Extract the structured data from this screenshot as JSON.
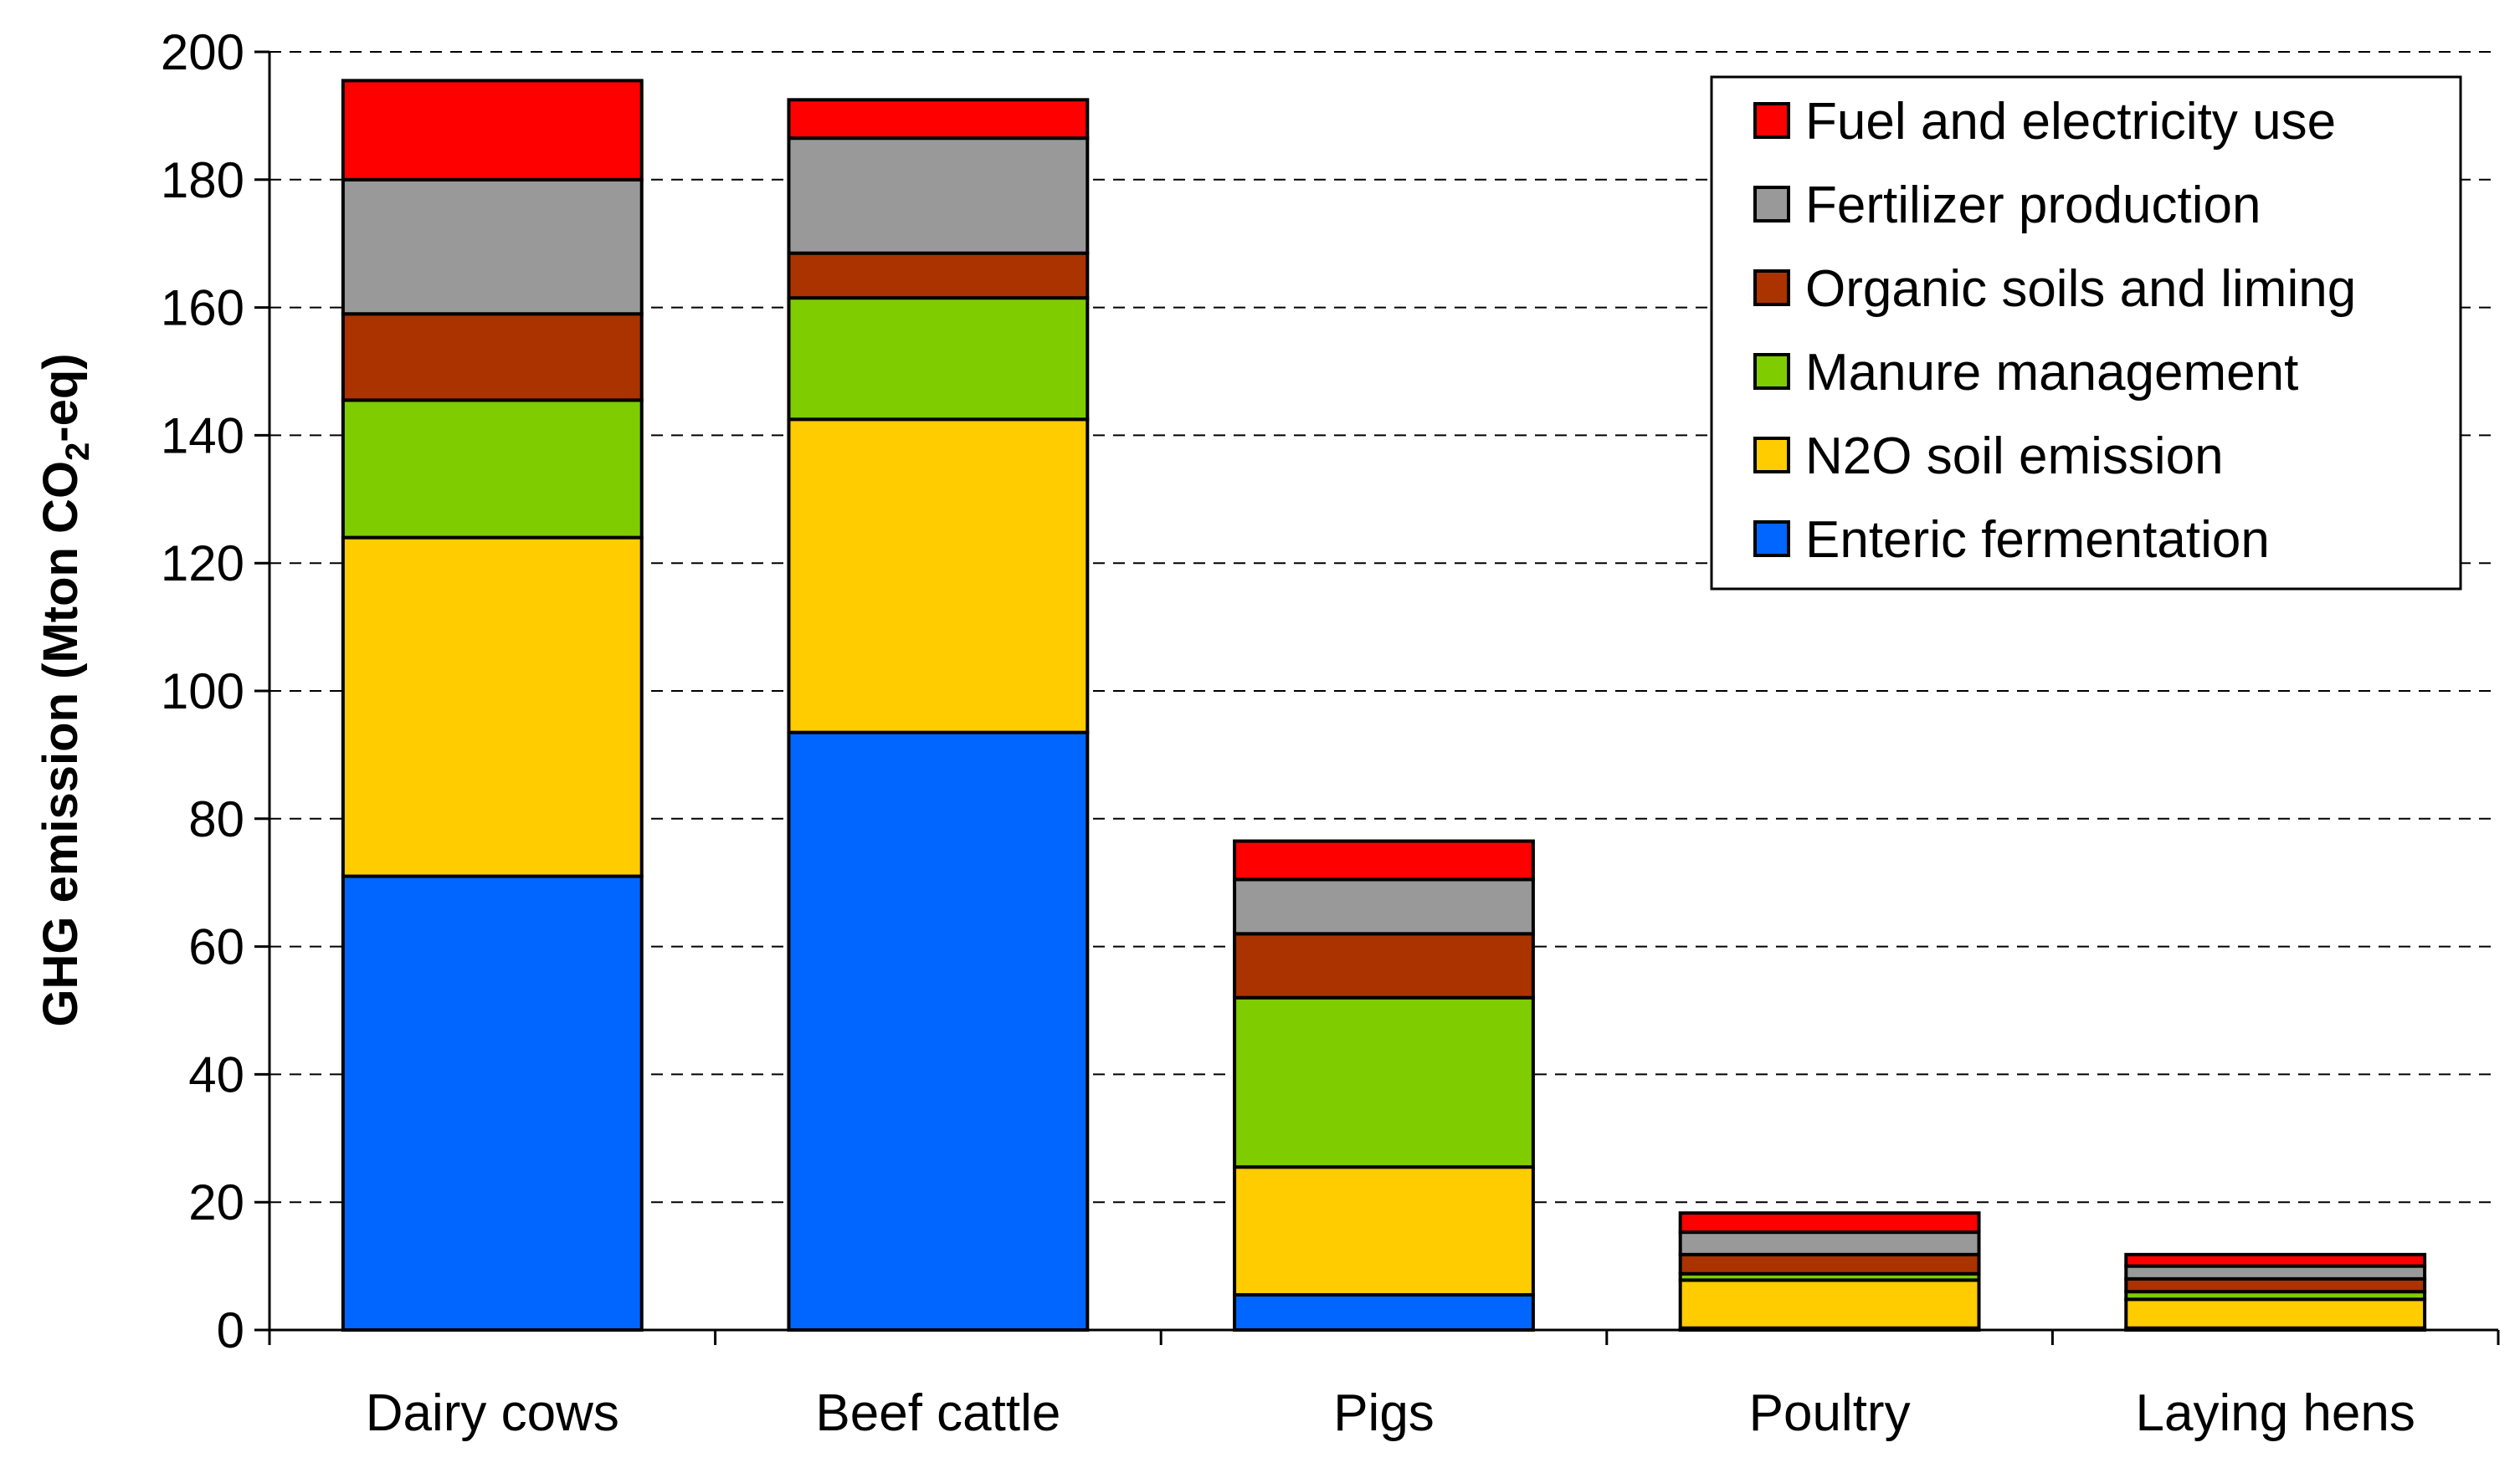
{
  "chart_data": {
    "type": "bar",
    "stacked": true,
    "title": "",
    "xlabel": "",
    "ylabel": {
      "prefix": "GHG emission (Mton CO",
      "subscript": "2",
      "suffix": "-eq)"
    },
    "ylim": [
      0,
      200
    ],
    "yticks": [
      "0",
      "20",
      "40",
      "60",
      "80",
      "100",
      "120",
      "140",
      "160",
      "180",
      "200"
    ],
    "grid": true,
    "legend_position": "top-right",
    "categories": [
      "Dairy cows",
      "Beef cattle",
      "Pigs",
      "Poultry",
      "Laying hens"
    ],
    "series": [
      {
        "name": "Enteric fermentation",
        "color": "#0066ff",
        "values": [
          71,
          93.5,
          5.5,
          0.3,
          0.3
        ]
      },
      {
        "name": "N2O soil emission",
        "color": "#ffcc00",
        "values": [
          53,
          49,
          20,
          7.5,
          4.5
        ]
      },
      {
        "name": "Manure management",
        "color": "#7fcc00",
        "values": [
          21.5,
          19,
          26.5,
          1,
          1.2
        ]
      },
      {
        "name": "Organic soils and liming",
        "color": "#aa3300",
        "values": [
          13.5,
          7,
          10,
          3,
          2
        ]
      },
      {
        "name": "Fertilizer production",
        "color": "#999999",
        "values": [
          21,
          18,
          8.5,
          3.5,
          2
        ]
      },
      {
        "name": "Fuel and electricity use",
        "color": "#ff0000",
        "values": [
          15.5,
          6,
          6,
          3,
          1.8
        ]
      }
    ]
  }
}
